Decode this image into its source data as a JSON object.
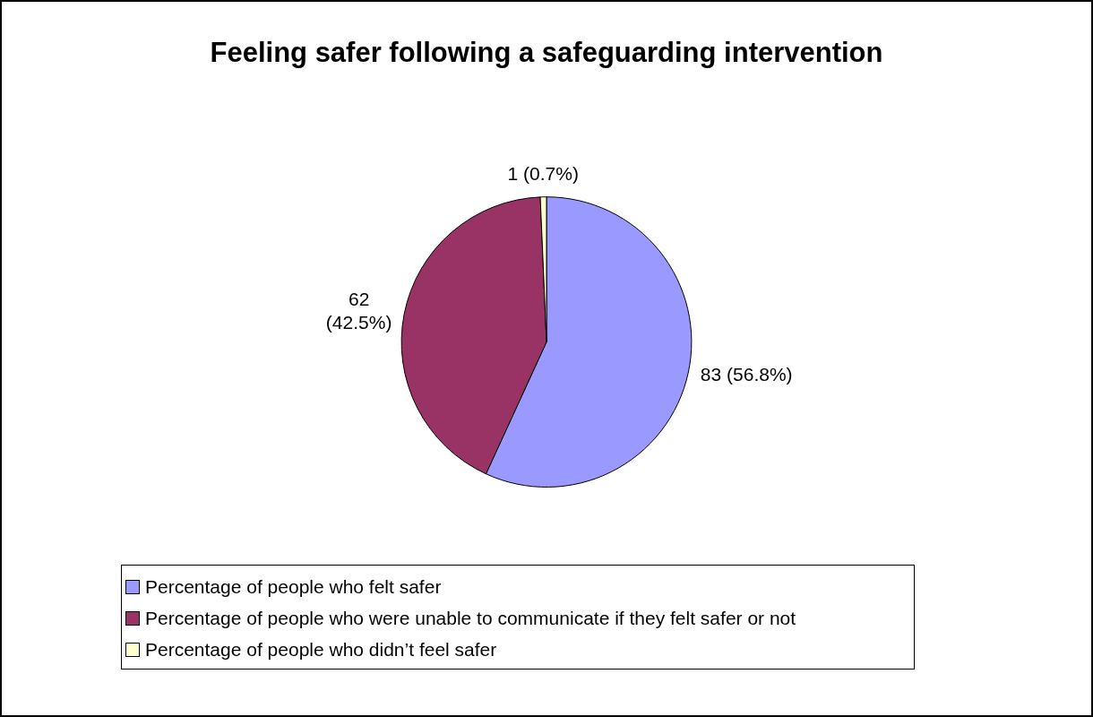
{
  "chart_data": {
    "type": "pie",
    "title": "Feeling safer following a safeguarding intervention",
    "categories": [
      "Percentage of people who felt safer",
      "Percentage of people who were unable to communicate if they felt safer or not",
      "Percentage of people who didn’t feel safer"
    ],
    "values": [
      83,
      62,
      1
    ],
    "colors": [
      "#9999ff",
      "#993366",
      "#ffffcc"
    ],
    "value_labels": [
      "83 (56.8%)",
      "62 (42.5%)",
      "1 (0.7%)"
    ],
    "legend": "bottom"
  }
}
